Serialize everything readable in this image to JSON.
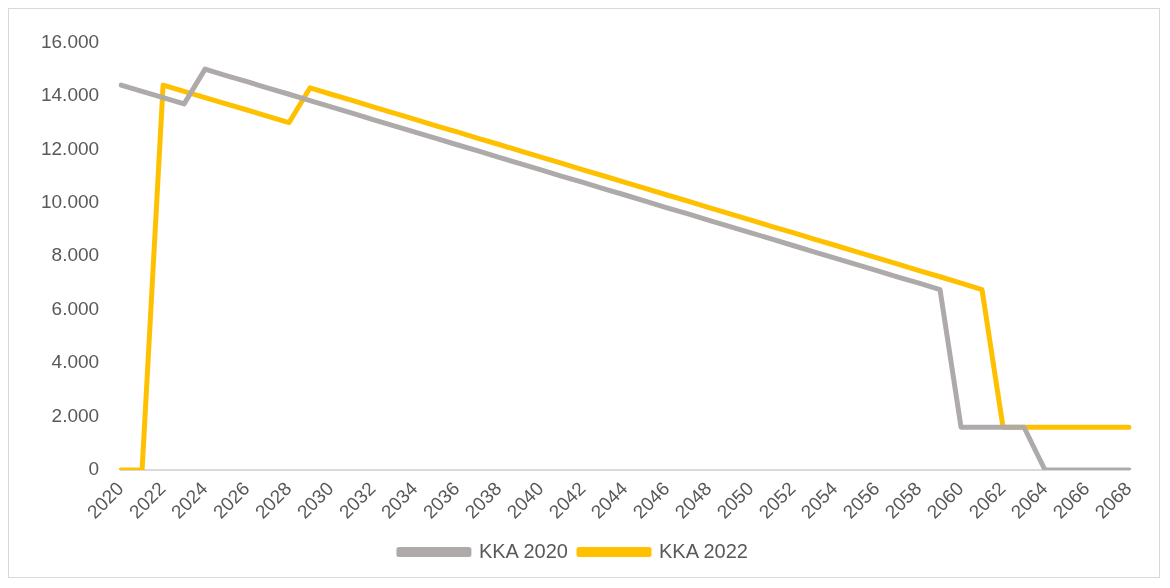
{
  "chart_data": {
    "type": "line",
    "categories": [
      "2020",
      null,
      "2022",
      null,
      "2024",
      null,
      "2026",
      null,
      "2028",
      null,
      "2030",
      null,
      "2032",
      null,
      "2034",
      null,
      "2036",
      null,
      "2038",
      null,
      "2040",
      null,
      "2042",
      null,
      "2044",
      null,
      "2046",
      null,
      "2048",
      null,
      "2050",
      null,
      "2052",
      null,
      "2054",
      null,
      "2056",
      null,
      "2058",
      null,
      "2060",
      null,
      "2062",
      null,
      "2064",
      null,
      "2066",
      null,
      "2068"
    ],
    "series": [
      {
        "name": "KKA 2020",
        "color": "#aeaaaa",
        "values": [
          14400,
          14170,
          13930,
          13700,
          15000,
          14760,
          14530,
          14290,
          14060,
          13820,
          13590,
          13350,
          13110,
          12880,
          12640,
          12410,
          12170,
          11940,
          11700,
          11460,
          11230,
          10990,
          10760,
          10520,
          10290,
          10050,
          9810,
          9580,
          9340,
          9110,
          8870,
          8640,
          8400,
          8160,
          7930,
          7690,
          7460,
          7220,
          6990,
          6750,
          1600,
          1600,
          1600,
          1600,
          0,
          0,
          0,
          0,
          0
        ]
      },
      {
        "name": "KKA 2022",
        "color": "#ffc000",
        "values": [
          0,
          0,
          14400,
          14170,
          13930,
          13700,
          13470,
          13230,
          13000,
          14300,
          14060,
          13830,
          13590,
          13350,
          13120,
          12880,
          12650,
          12410,
          12180,
          11940,
          11710,
          11470,
          11230,
          11000,
          10760,
          10530,
          10290,
          10060,
          9820,
          9580,
          9350,
          9110,
          8880,
          8640,
          8410,
          8170,
          7940,
          7700,
          7460,
          7230,
          6990,
          6750,
          1600,
          1600,
          1600,
          1600,
          1600,
          1600,
          1600
        ]
      }
    ],
    "ylim": [
      0,
      16000
    ],
    "yticks": [
      0,
      {
        "value": 2000,
        "label": "2.000"
      },
      {
        "value": 4000,
        "label": "4.000"
      },
      {
        "value": 6000,
        "label": "6.000"
      },
      {
        "value": 8000,
        "label": "8.000"
      },
      {
        "value": 10000,
        "label": "10.000"
      },
      {
        "value": 12000,
        "label": "12.000"
      },
      {
        "value": 14000,
        "label": "14.000"
      },
      {
        "value": 16000,
        "label": "16.000"
      }
    ],
    "grid": false,
    "legend": "bottom",
    "marker": "none",
    "line_style": "solid"
  }
}
